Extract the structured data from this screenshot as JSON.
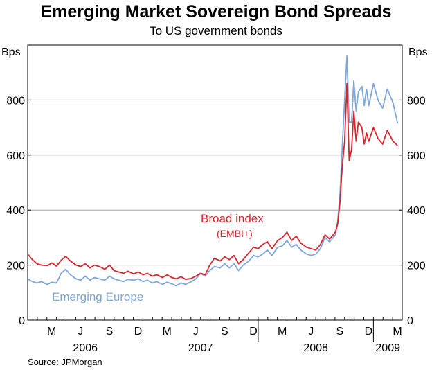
{
  "title": "Emerging Market Sovereign Bond Spreads",
  "subtitle": "To US government bonds",
  "source": "Source: JPMorgan",
  "colors": {
    "broad": "#d7262d",
    "europe": "#7ea7da",
    "axis": "#000000",
    "grid": "#a6a6a6"
  },
  "chart_data": {
    "type": "line",
    "title": "Emerging Market Sovereign Bond Spreads",
    "subtitle": "To US government bonds",
    "ylabel_left": "Bps",
    "ylabel_right": "Bps",
    "ylim": [
      0,
      1000
    ],
    "yticks": [
      0,
      200,
      400,
      600,
      800
    ],
    "xlim": [
      2006.0,
      2009.25
    ],
    "month_ticks": [
      "M",
      "J",
      "S",
      "D",
      "M",
      "J",
      "S",
      "D",
      "M",
      "J",
      "S",
      "D",
      "M"
    ],
    "years": [
      "2006",
      "2007",
      "2008",
      "2009"
    ],
    "series": [
      {
        "name": "Broad index",
        "sublabel": "(EMBI+)",
        "color": "#d7262d",
        "x": [
          2006.0,
          2006.04,
          2006.08,
          2006.12,
          2006.17,
          2006.21,
          2006.25,
          2006.29,
          2006.33,
          2006.37,
          2006.42,
          2006.46,
          2006.5,
          2006.54,
          2006.58,
          2006.62,
          2006.67,
          2006.71,
          2006.75,
          2006.79,
          2006.83,
          2006.87,
          2006.92,
          2006.96,
          2007.0,
          2007.04,
          2007.08,
          2007.12,
          2007.17,
          2007.21,
          2007.25,
          2007.29,
          2007.33,
          2007.37,
          2007.42,
          2007.46,
          2007.5,
          2007.54,
          2007.58,
          2007.62,
          2007.67,
          2007.71,
          2007.75,
          2007.79,
          2007.83,
          2007.87,
          2007.92,
          2007.96,
          2008.0,
          2008.04,
          2008.08,
          2008.12,
          2008.17,
          2008.21,
          2008.25,
          2008.29,
          2008.33,
          2008.37,
          2008.42,
          2008.46,
          2008.5,
          2008.54,
          2008.58,
          2008.62,
          2008.67,
          2008.69,
          2008.71,
          2008.73,
          2008.75,
          2008.77,
          2008.79,
          2008.81,
          2008.83,
          2008.85,
          2008.87,
          2008.9,
          2008.92,
          2008.94,
          2008.96,
          2009.0,
          2009.04,
          2009.08,
          2009.12,
          2009.17,
          2009.21
        ],
        "values": [
          240,
          220,
          205,
          200,
          198,
          208,
          196,
          218,
          232,
          215,
          200,
          195,
          205,
          190,
          200,
          195,
          185,
          200,
          180,
          175,
          170,
          178,
          168,
          175,
          165,
          170,
          160,
          165,
          155,
          165,
          155,
          150,
          158,
          148,
          152,
          160,
          170,
          165,
          200,
          225,
          215,
          230,
          220,
          235,
          205,
          220,
          245,
          265,
          260,
          275,
          285,
          260,
          290,
          300,
          320,
          290,
          305,
          280,
          265,
          260,
          255,
          275,
          310,
          295,
          320,
          350,
          430,
          560,
          650,
          860,
          580,
          620,
          760,
          650,
          720,
          700,
          640,
          680,
          650,
          700,
          660,
          640,
          690,
          650,
          635
        ]
      },
      {
        "name": "Emerging Europe",
        "color": "#7ea7da",
        "x": [
          2006.0,
          2006.04,
          2006.08,
          2006.12,
          2006.17,
          2006.21,
          2006.25,
          2006.29,
          2006.33,
          2006.37,
          2006.42,
          2006.46,
          2006.5,
          2006.54,
          2006.58,
          2006.62,
          2006.67,
          2006.71,
          2006.75,
          2006.79,
          2006.83,
          2006.87,
          2006.92,
          2006.96,
          2007.0,
          2007.04,
          2007.08,
          2007.12,
          2007.17,
          2007.21,
          2007.25,
          2007.29,
          2007.33,
          2007.37,
          2007.42,
          2007.46,
          2007.5,
          2007.54,
          2007.58,
          2007.62,
          2007.67,
          2007.71,
          2007.75,
          2007.79,
          2007.83,
          2007.87,
          2007.92,
          2007.96,
          2008.0,
          2008.04,
          2008.08,
          2008.12,
          2008.17,
          2008.21,
          2008.25,
          2008.29,
          2008.33,
          2008.37,
          2008.42,
          2008.46,
          2008.5,
          2008.54,
          2008.58,
          2008.62,
          2008.67,
          2008.69,
          2008.71,
          2008.73,
          2008.75,
          2008.77,
          2008.79,
          2008.81,
          2008.83,
          2008.85,
          2008.87,
          2008.9,
          2008.92,
          2008.94,
          2008.96,
          2009.0,
          2009.04,
          2009.08,
          2009.12,
          2009.17,
          2009.21
        ],
        "values": [
          150,
          140,
          135,
          140,
          130,
          138,
          135,
          170,
          185,
          165,
          150,
          145,
          160,
          145,
          155,
          150,
          145,
          160,
          150,
          145,
          140,
          148,
          145,
          150,
          140,
          145,
          135,
          140,
          130,
          138,
          132,
          125,
          135,
          130,
          140,
          150,
          170,
          160,
          180,
          195,
          190,
          205,
          190,
          205,
          180,
          200,
          215,
          235,
          230,
          240,
          255,
          235,
          265,
          270,
          290,
          265,
          275,
          255,
          240,
          235,
          240,
          260,
          300,
          285,
          310,
          360,
          460,
          630,
          800,
          960,
          720,
          720,
          870,
          760,
          830,
          850,
          780,
          840,
          780,
          860,
          800,
          770,
          840,
          790,
          715
        ]
      }
    ],
    "annotations": [
      {
        "text": "Broad index",
        "series": "Broad index"
      },
      {
        "text": "(EMBI+)",
        "series": "Broad index"
      },
      {
        "text": "Emerging Europe",
        "series": "Emerging Europe"
      }
    ]
  }
}
